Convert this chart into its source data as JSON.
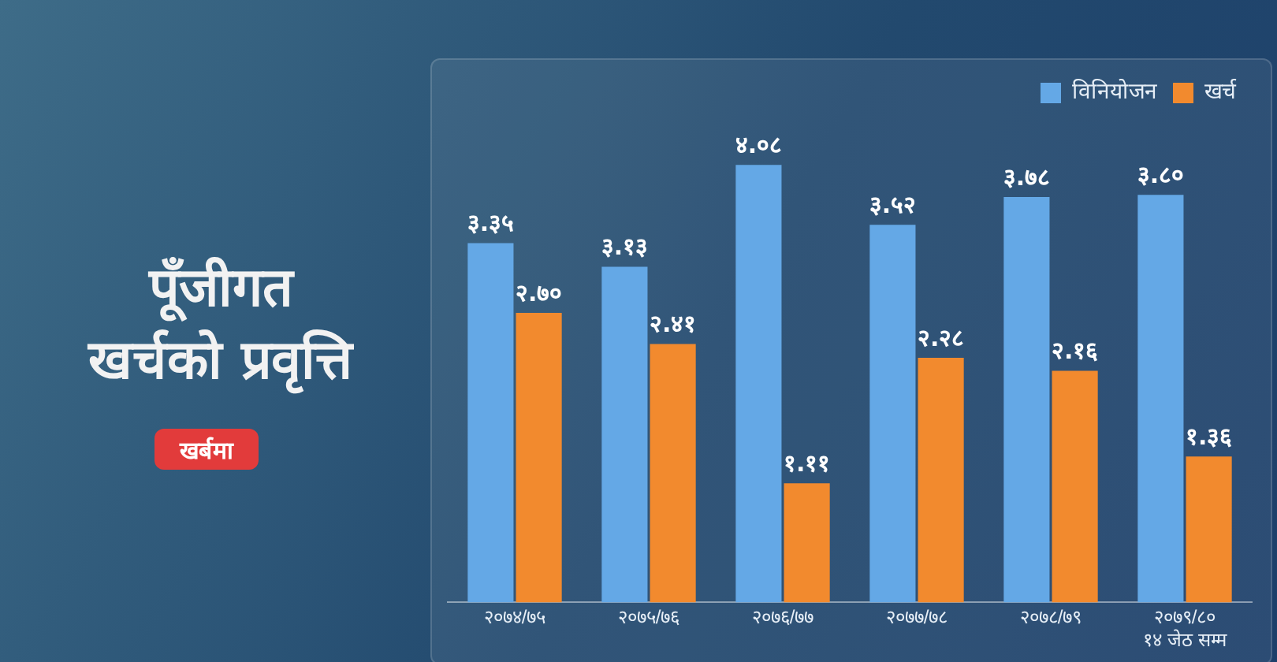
{
  "chart_data": {
    "type": "bar",
    "title": "पूँजीगत खर्चको प्रवृत्ति",
    "subtitle": "खर्बमा",
    "categories": [
      "२०७४/७५",
      "२०७५/७६",
      "२०७६/७७",
      "२०७७/७८",
      "२०७८/७९",
      "२०७९/८०\n१४ जेठ सम्म"
    ],
    "series": [
      {
        "name": "विनियोजन",
        "color": "#64a8e6",
        "values": [
          3.35,
          3.13,
          4.08,
          3.52,
          3.78,
          3.8
        ],
        "value_labels": [
          "३.३५",
          "३.१३",
          "४.०८",
          "३.५२",
          "३.७८",
          "३.८०"
        ]
      },
      {
        "name": "खर्च",
        "color": "#f28a2e",
        "values": [
          2.7,
          2.41,
          1.11,
          2.28,
          2.16,
          1.36
        ],
        "value_labels": [
          "२.७०",
          "२.४१",
          "१.११",
          "२.२८",
          "२.१६",
          "१.३६"
        ]
      }
    ],
    "legend": "top right",
    "grid": false
  }
}
